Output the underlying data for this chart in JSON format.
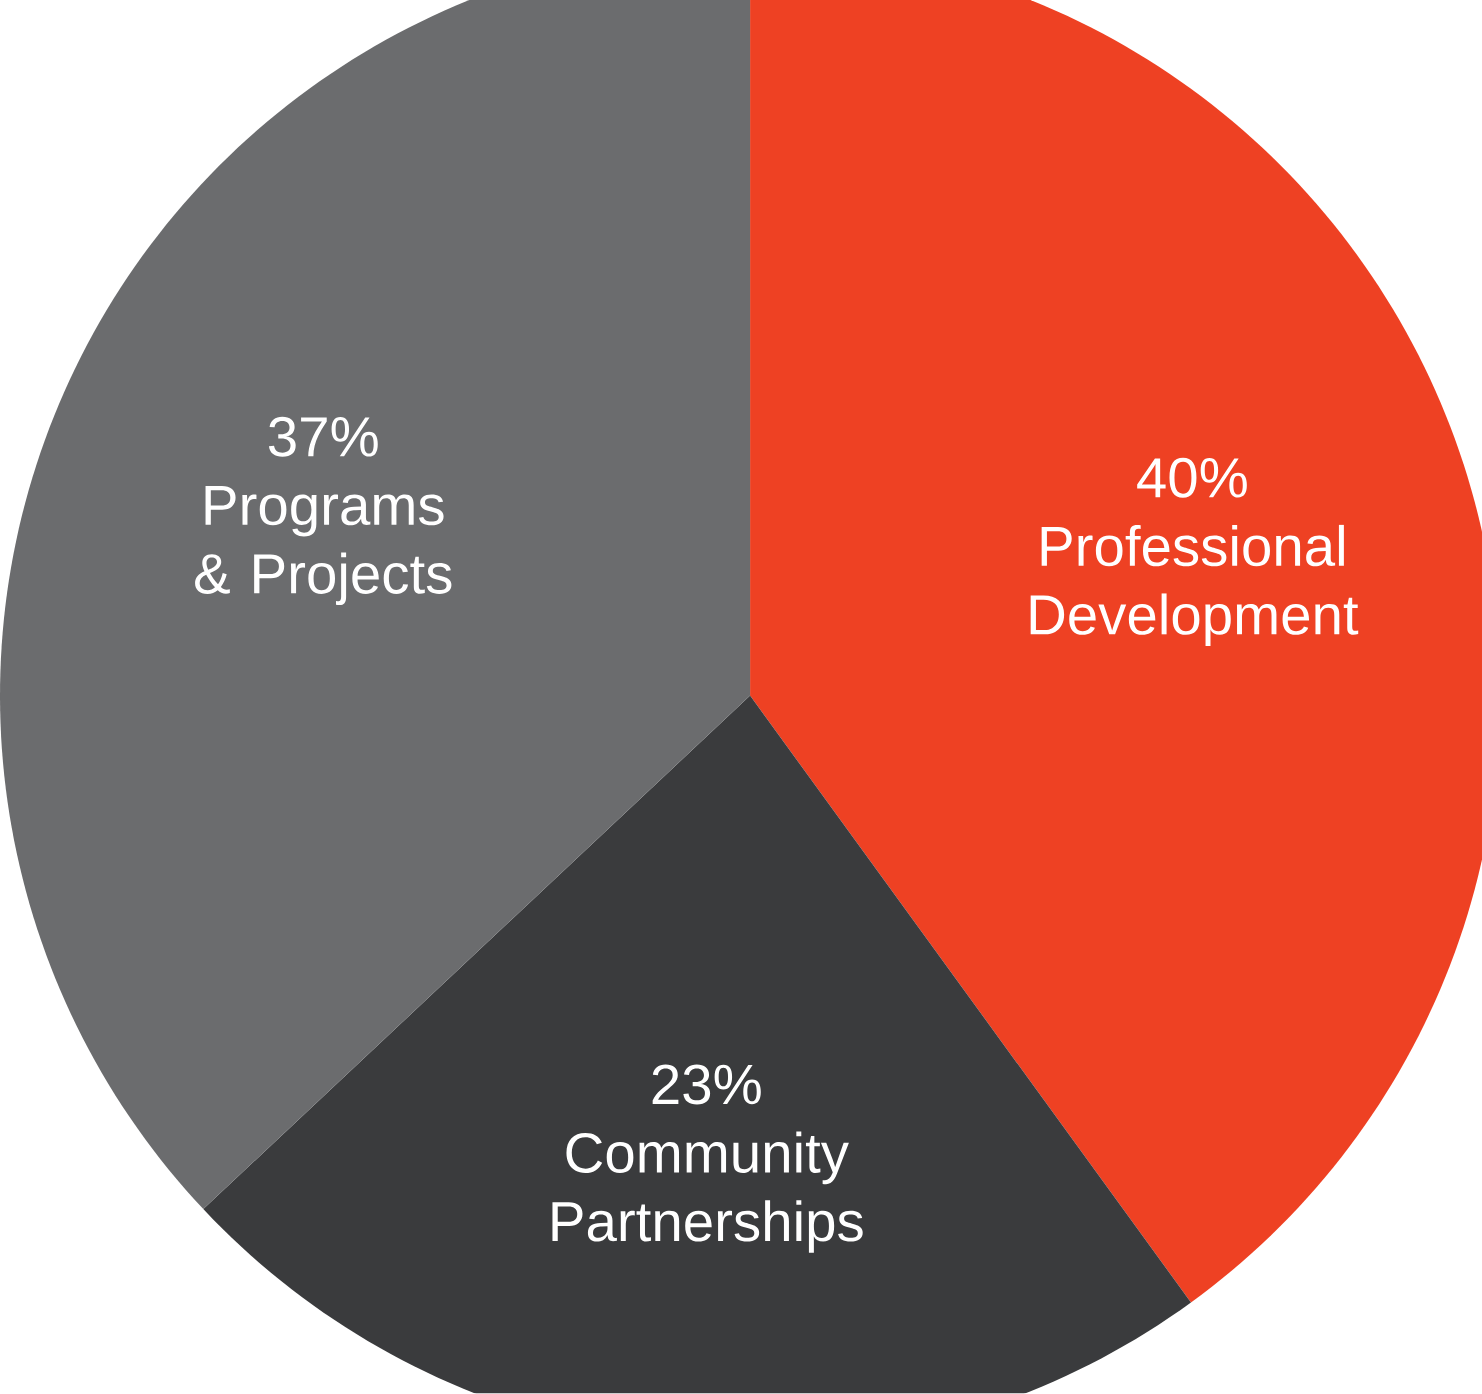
{
  "chart_data": {
    "type": "pie",
    "categories": [
      "Professional Development",
      "Community Partnerships",
      "Programs & Projects"
    ],
    "values": [
      40,
      23,
      37
    ],
    "value_labels": [
      "40%",
      "23%",
      "37%"
    ],
    "colors": [
      "#ee4123",
      "#3a3b3d",
      "#6b6c6e"
    ]
  }
}
